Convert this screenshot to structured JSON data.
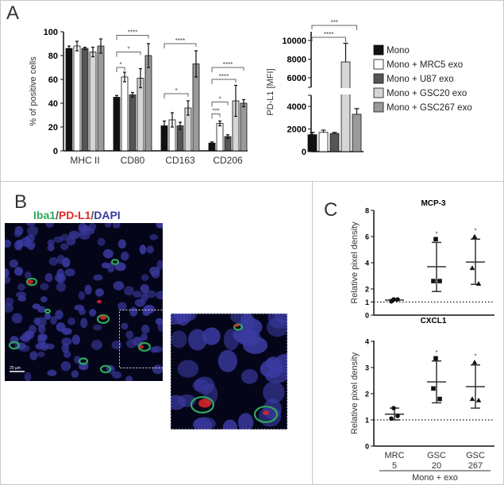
{
  "panels": {
    "a": "A",
    "b": "B",
    "c": "C"
  },
  "colors": {
    "Mono": "#111111",
    "Mono + MRC5 exo": "#ffffff",
    "Mono + U87 exo": "#555555",
    "Mono + GSC20 exo": "#d6d6d6",
    "Mono + GSC267 exo": "#9a9a9a",
    "iba1": "#2eaa5a",
    "pdl1": "#e02828",
    "dapi": "#3a3aa0"
  },
  "legend": [
    "Mono",
    "Mono + MRC5 exo",
    "Mono + U87 exo",
    "Mono + GSC20 exo",
    "Mono + GSC267 exo"
  ],
  "micrograph": {
    "title_parts": [
      "Iba1",
      "/",
      "PD-L1",
      "/",
      "DAPI"
    ],
    "scale_bar": "20 µm"
  },
  "chart_data": [
    {
      "id": "A-left",
      "type": "bar",
      "ylabel": "% of positive cells",
      "ylim": [
        0,
        100
      ],
      "yticks": [
        "0",
        "20",
        "40",
        "60",
        "80",
        "100"
      ],
      "categories": [
        "MHC II",
        "CD80",
        "CD163",
        "CD206"
      ],
      "series": [
        {
          "name": "Mono",
          "values": [
            86,
            45,
            21,
            6.5
          ],
          "errors": [
            2,
            1.5,
            4,
            1
          ]
        },
        {
          "name": "Mono + MRC5 exo",
          "values": [
            88,
            62,
            26,
            23
          ],
          "errors": [
            4,
            4,
            6,
            2
          ]
        },
        {
          "name": "Mono + U87 exo",
          "values": [
            86,
            47,
            21,
            12
          ],
          "errors": [
            1,
            2,
            3,
            1.5
          ]
        },
        {
          "name": "Mono + GSC20 exo",
          "values": [
            83,
            61,
            36,
            42
          ],
          "errors": [
            4,
            8,
            6,
            13
          ]
        },
        {
          "name": "Mono + GSC267 exo",
          "values": [
            88,
            80,
            73,
            40
          ],
          "errors": [
            6,
            10,
            11,
            3
          ]
        }
      ],
      "significance": [
        {
          "category": 1,
          "from": 0,
          "to": 1,
          "level": 70,
          "label": "*"
        },
        {
          "category": 1,
          "from": 0,
          "to": 3,
          "level": 83,
          "label": "*"
        },
        {
          "category": 1,
          "from": 0,
          "to": 4,
          "level": 97,
          "label": "****"
        },
        {
          "category": 2,
          "from": 0,
          "to": 3,
          "level": 48,
          "label": "*"
        },
        {
          "category": 2,
          "from": 0,
          "to": 4,
          "level": 90,
          "label": "****"
        },
        {
          "category": 3,
          "from": 0,
          "to": 1,
          "level": 31,
          "label": "***"
        },
        {
          "category": 3,
          "from": 0,
          "to": 2,
          "level": 41,
          "label": "*"
        },
        {
          "category": 3,
          "from": 0,
          "to": 3,
          "level": 60,
          "label": "****"
        },
        {
          "category": 3,
          "from": 0,
          "to": 4,
          "level": 70,
          "label": "****"
        }
      ]
    },
    {
      "id": "A-right",
      "type": "bar",
      "ylabel": "PD-L1 [MFI]",
      "axis_break": [
        5000,
        5500
      ],
      "yticks": [
        "0",
        "2000",
        "4000",
        "6000",
        "8000",
        "10000"
      ],
      "categories": [
        "Mono",
        "Mono + MRC5 exo",
        "Mono + U87 exo",
        "Mono + GSC20 exo",
        "Mono + GSC267 exo"
      ],
      "values": [
        1500,
        1700,
        1600,
        7700,
        3300
      ],
      "errors": [
        200,
        200,
        100,
        2000,
        500
      ],
      "significance": [
        {
          "from": 0,
          "to": 3,
          "label": "****"
        },
        {
          "from": 0,
          "to": 4,
          "label": "***"
        }
      ]
    },
    {
      "id": "C-top",
      "type": "scatter",
      "title": "MCP-3",
      "ylabel": "Relative pixel density",
      "ylim": [
        0,
        8
      ],
      "yticks": [
        "0",
        "1",
        "2",
        "4",
        "6",
        "8"
      ],
      "reference_line": 1,
      "groups": [
        {
          "marker": "circle",
          "points": [
            1.2,
            1.05,
            1.2
          ],
          "mean": 1.15,
          "sd_low": 1.1,
          "sd_high": 1.2,
          "sig": ""
        },
        {
          "marker": "square",
          "points": [
            5.8,
            2.6,
            2.6
          ],
          "mean": 3.7,
          "sd_low": 1.8,
          "sd_high": 5.55,
          "sig": "*"
        },
        {
          "marker": "triangle",
          "points": [
            6.0,
            3.6,
            2.4
          ],
          "mean": 4.05,
          "sd_low": 2.35,
          "sd_high": 5.8,
          "sig": "*"
        }
      ]
    },
    {
      "id": "C-bottom",
      "type": "scatter",
      "title": "CXCL1",
      "ylabel": "Relative pixel density",
      "ylim": [
        0,
        4
      ],
      "yticks": [
        "0",
        "1",
        "2",
        "3",
        "4"
      ],
      "reference_line": 1,
      "categories": [
        [
          "MRC",
          "5"
        ],
        [
          "GSC",
          "20"
        ],
        [
          "GSC",
          "267"
        ]
      ],
      "xgroup_label": "Mono + exo",
      "groups": [
        {
          "marker": "circle",
          "points": [
            1.45,
            1.05,
            1.15
          ],
          "mean": 1.22,
          "sd_low": 1.0,
          "sd_high": 1.45,
          "sig": ""
        },
        {
          "marker": "square",
          "points": [
            3.35,
            2.2,
            1.8
          ],
          "mean": 2.45,
          "sd_low": 1.65,
          "sd_high": 3.25,
          "sig": "*"
        },
        {
          "marker": "triangle",
          "points": [
            3.2,
            1.8,
            1.75
          ],
          "mean": 2.27,
          "sd_low": 1.45,
          "sd_high": 3.1,
          "sig": "*"
        }
      ]
    }
  ]
}
